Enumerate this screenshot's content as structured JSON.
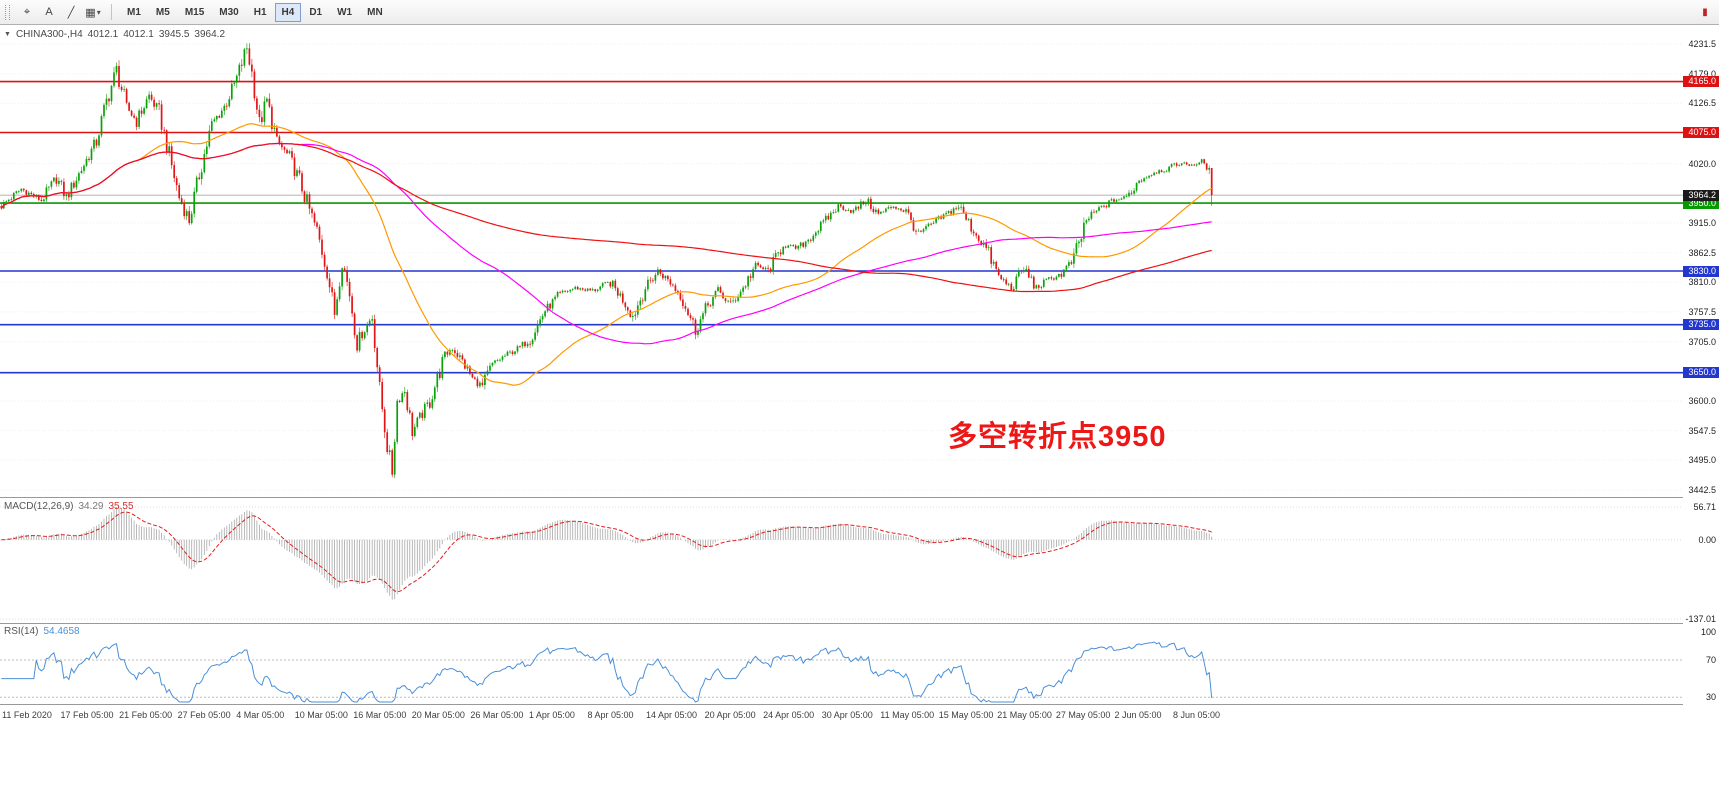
{
  "toolbar": {
    "tools": [
      {
        "name": "crosshair",
        "glyph": "⌖"
      },
      {
        "name": "text-label",
        "glyph": "A"
      },
      {
        "name": "trendline",
        "glyph": "╱"
      },
      {
        "name": "shapes",
        "glyph": "▦",
        "arrow": "▾"
      }
    ],
    "timeframes": [
      "M1",
      "M5",
      "M15",
      "M30",
      "H1",
      "H4",
      "D1",
      "W1",
      "MN"
    ],
    "active_timeframe": "H4",
    "right_icon": "▮"
  },
  "chart_data": {
    "type": "candlestick",
    "symbol": "CHINA300-",
    "timeframe": "H4",
    "header": {
      "triangle": "▼",
      "prefix": "CHINA300-,H4",
      "open": "4012.1",
      "high": "4012.1",
      "low": "3945.5",
      "close": "3964.2"
    },
    "bars": 484,
    "price_axis": {
      "min": 3442.5,
      "max": 4231.5,
      "ticks": [
        4231.5,
        4179.0,
        4126.5,
        4020.0,
        3915.0,
        3862.5,
        3810.0,
        3757.5,
        3705.0,
        3600.0,
        3547.5,
        3495.0,
        3442.5
      ]
    },
    "levels": [
      {
        "price": 4165.0,
        "label": "4165.0",
        "color": "#dd1111",
        "type": "resistance"
      },
      {
        "price": 4075.0,
        "label": "4075.0",
        "color": "#dd1111",
        "type": "resistance"
      },
      {
        "price": 3950.0,
        "label": "3950.0",
        "color": "#089800",
        "type": "pivot"
      },
      {
        "price": 3830.0,
        "label": "3830.0",
        "color": "#2337cf",
        "type": "support"
      },
      {
        "price": 3735.0,
        "label": "3735.0",
        "color": "#2337cf",
        "type": "support"
      },
      {
        "price": 3650.0,
        "label": "3650.0",
        "color": "#2337cf",
        "type": "support"
      }
    ],
    "current_price": {
      "value": 3964.2,
      "label": "3964.2",
      "badge_color": "#1a1a1a"
    },
    "last_candle": {
      "open": 4012.1,
      "high": 4012.1,
      "low": 3945.5,
      "close": 3964.2
    },
    "annotation": {
      "text": "多空转折点3950",
      "color": "#ee1717"
    },
    "colors": {
      "up": "#0aa10a",
      "down": "#e01515"
    },
    "moving_averages": [
      {
        "period": 56,
        "color": "#ff9900"
      },
      {
        "period": 120,
        "color": "#ff00ff"
      },
      {
        "period": 280,
        "color": "#ee1111"
      }
    ],
    "x_labels": [
      "11 Feb 2020",
      "17 Feb 05:00",
      "21 Feb 05:00",
      "27 Feb 05:00",
      "4 Mar 05:00",
      "10 Mar 05:00",
      "16 Mar 05:00",
      "20 Mar 05:00",
      "26 Mar 05:00",
      "1 Apr 05:00",
      "8 Apr 05:00",
      "14 Apr 05:00",
      "20 Apr 05:00",
      "24 Apr 05:00",
      "30 Apr 05:00",
      "11 May 05:00",
      "15 May 05:00",
      "21 May 05:00",
      "27 May 05:00",
      "2 Jun 05:00",
      "8 Jun 05:00"
    ],
    "price_path": [
      [
        0,
        3945
      ],
      [
        8,
        3975
      ],
      [
        16,
        3955
      ],
      [
        22,
        3995
      ],
      [
        26,
        3960
      ],
      [
        32,
        4010
      ],
      [
        38,
        4060
      ],
      [
        42,
        4130
      ],
      [
        46,
        4185
      ],
      [
        50,
        4120
      ],
      [
        54,
        4095
      ],
      [
        59,
        4140
      ],
      [
        63,
        4110
      ],
      [
        67,
        4035
      ],
      [
        71,
        3960
      ],
      [
        75,
        3920
      ],
      [
        79,
        4000
      ],
      [
        84,
        4090
      ],
      [
        89,
        4120
      ],
      [
        94,
        4170
      ],
      [
        98,
        4225
      ],
      [
        100,
        4180
      ],
      [
        103,
        4090
      ],
      [
        106,
        4130
      ],
      [
        110,
        4060
      ],
      [
        115,
        4030
      ],
      [
        119,
        3990
      ],
      [
        122,
        3950
      ],
      [
        126,
        3900
      ],
      [
        130,
        3830
      ],
      [
        133,
        3755
      ],
      [
        136,
        3850
      ],
      [
        139,
        3790
      ],
      [
        142,
        3700
      ],
      [
        144,
        3720
      ],
      [
        148,
        3750
      ],
      [
        151,
        3620
      ],
      [
        154,
        3520
      ],
      [
        156,
        3475
      ],
      [
        158,
        3600
      ],
      [
        161,
        3620
      ],
      [
        164,
        3545
      ],
      [
        167,
        3570
      ],
      [
        171,
        3600
      ],
      [
        174,
        3640
      ],
      [
        177,
        3680
      ],
      [
        180,
        3695
      ],
      [
        184,
        3670
      ],
      [
        188,
        3640
      ],
      [
        192,
        3625
      ],
      [
        196,
        3665
      ],
      [
        201,
        3680
      ],
      [
        207,
        3695
      ],
      [
        211,
        3710
      ],
      [
        217,
        3760
      ],
      [
        223,
        3790
      ],
      [
        229,
        3800
      ],
      [
        236,
        3795
      ],
      [
        243,
        3810
      ],
      [
        248,
        3780
      ],
      [
        252,
        3750
      ],
      [
        257,
        3800
      ],
      [
        262,
        3830
      ],
      [
        267,
        3810
      ],
      [
        272,
        3780
      ],
      [
        277,
        3725
      ],
      [
        282,
        3770
      ],
      [
        286,
        3795
      ],
      [
        291,
        3770
      ],
      [
        296,
        3800
      ],
      [
        301,
        3840
      ],
      [
        306,
        3830
      ],
      [
        312,
        3875
      ],
      [
        318,
        3870
      ],
      [
        323,
        3890
      ],
      [
        329,
        3920
      ],
      [
        334,
        3945
      ],
      [
        340,
        3935
      ],
      [
        345,
        3955
      ],
      [
        350,
        3930
      ],
      [
        356,
        3945
      ],
      [
        361,
        3935
      ],
      [
        366,
        3895
      ],
      [
        372,
        3915
      ],
      [
        377,
        3930
      ],
      [
        382,
        3945
      ],
      [
        388,
        3900
      ],
      [
        393,
        3870
      ],
      [
        398,
        3820
      ],
      [
        403,
        3800
      ],
      [
        408,
        3835
      ],
      [
        413,
        3800
      ],
      [
        418,
        3815
      ],
      [
        423,
        3825
      ],
      [
        428,
        3850
      ],
      [
        433,
        3920
      ],
      [
        438,
        3940
      ],
      [
        444,
        3955
      ],
      [
        449,
        3960
      ],
      [
        454,
        3990
      ],
      [
        460,
        4005
      ],
      [
        465,
        4010
      ],
      [
        470,
        4020
      ],
      [
        475,
        4018
      ],
      [
        479,
        4022
      ],
      [
        482,
        4012
      ],
      [
        483,
        3964
      ]
    ],
    "indicators": {
      "macd": {
        "header_label": "MACD(12,26,9)",
        "value": "34.29",
        "signal": "35.55",
        "fast": 12,
        "slow": 26,
        "signal_period": 9,
        "scale": [
          "56.71",
          "0.00",
          "-137.01"
        ],
        "scale_values": [
          56.71,
          0,
          -137.01
        ],
        "signal_color": "#e02020",
        "histogram_color": "#a8a8a8"
      },
      "rsi": {
        "header_label": "RSI(14)",
        "value": "54.4658",
        "period": 14,
        "scale": [
          "100",
          "70",
          "30"
        ],
        "scale_values": [
          100,
          70,
          30
        ],
        "line_color": "#4a90d9"
      }
    }
  }
}
